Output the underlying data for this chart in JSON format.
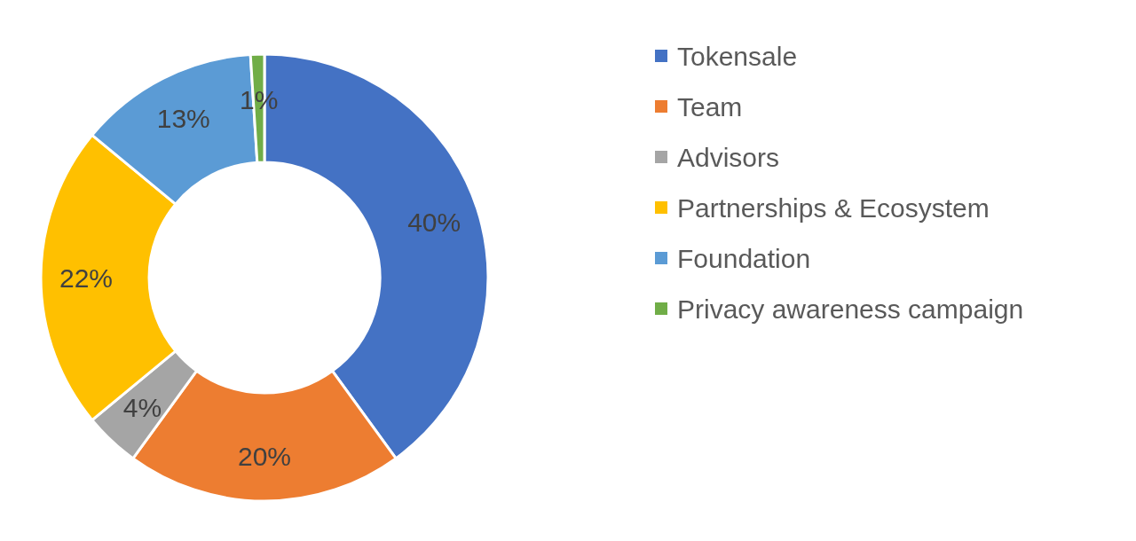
{
  "chart_data": {
    "type": "donut",
    "categories": [
      "Tokensale",
      "Team",
      "Advisors",
      "Partnerships & Ecosystem",
      "Foundation",
      "Privacy awareness campaign"
    ],
    "values": [
      40,
      20,
      4,
      22,
      13,
      1
    ],
    "colors": [
      "#4472c4",
      "#ed7d31",
      "#a5a5a5",
      "#ffc000",
      "#5b9bd5",
      "#70ad47"
    ],
    "value_labels": [
      "40%",
      "20%",
      "4%",
      "22%",
      "13%",
      "1%"
    ],
    "legend": "right"
  }
}
